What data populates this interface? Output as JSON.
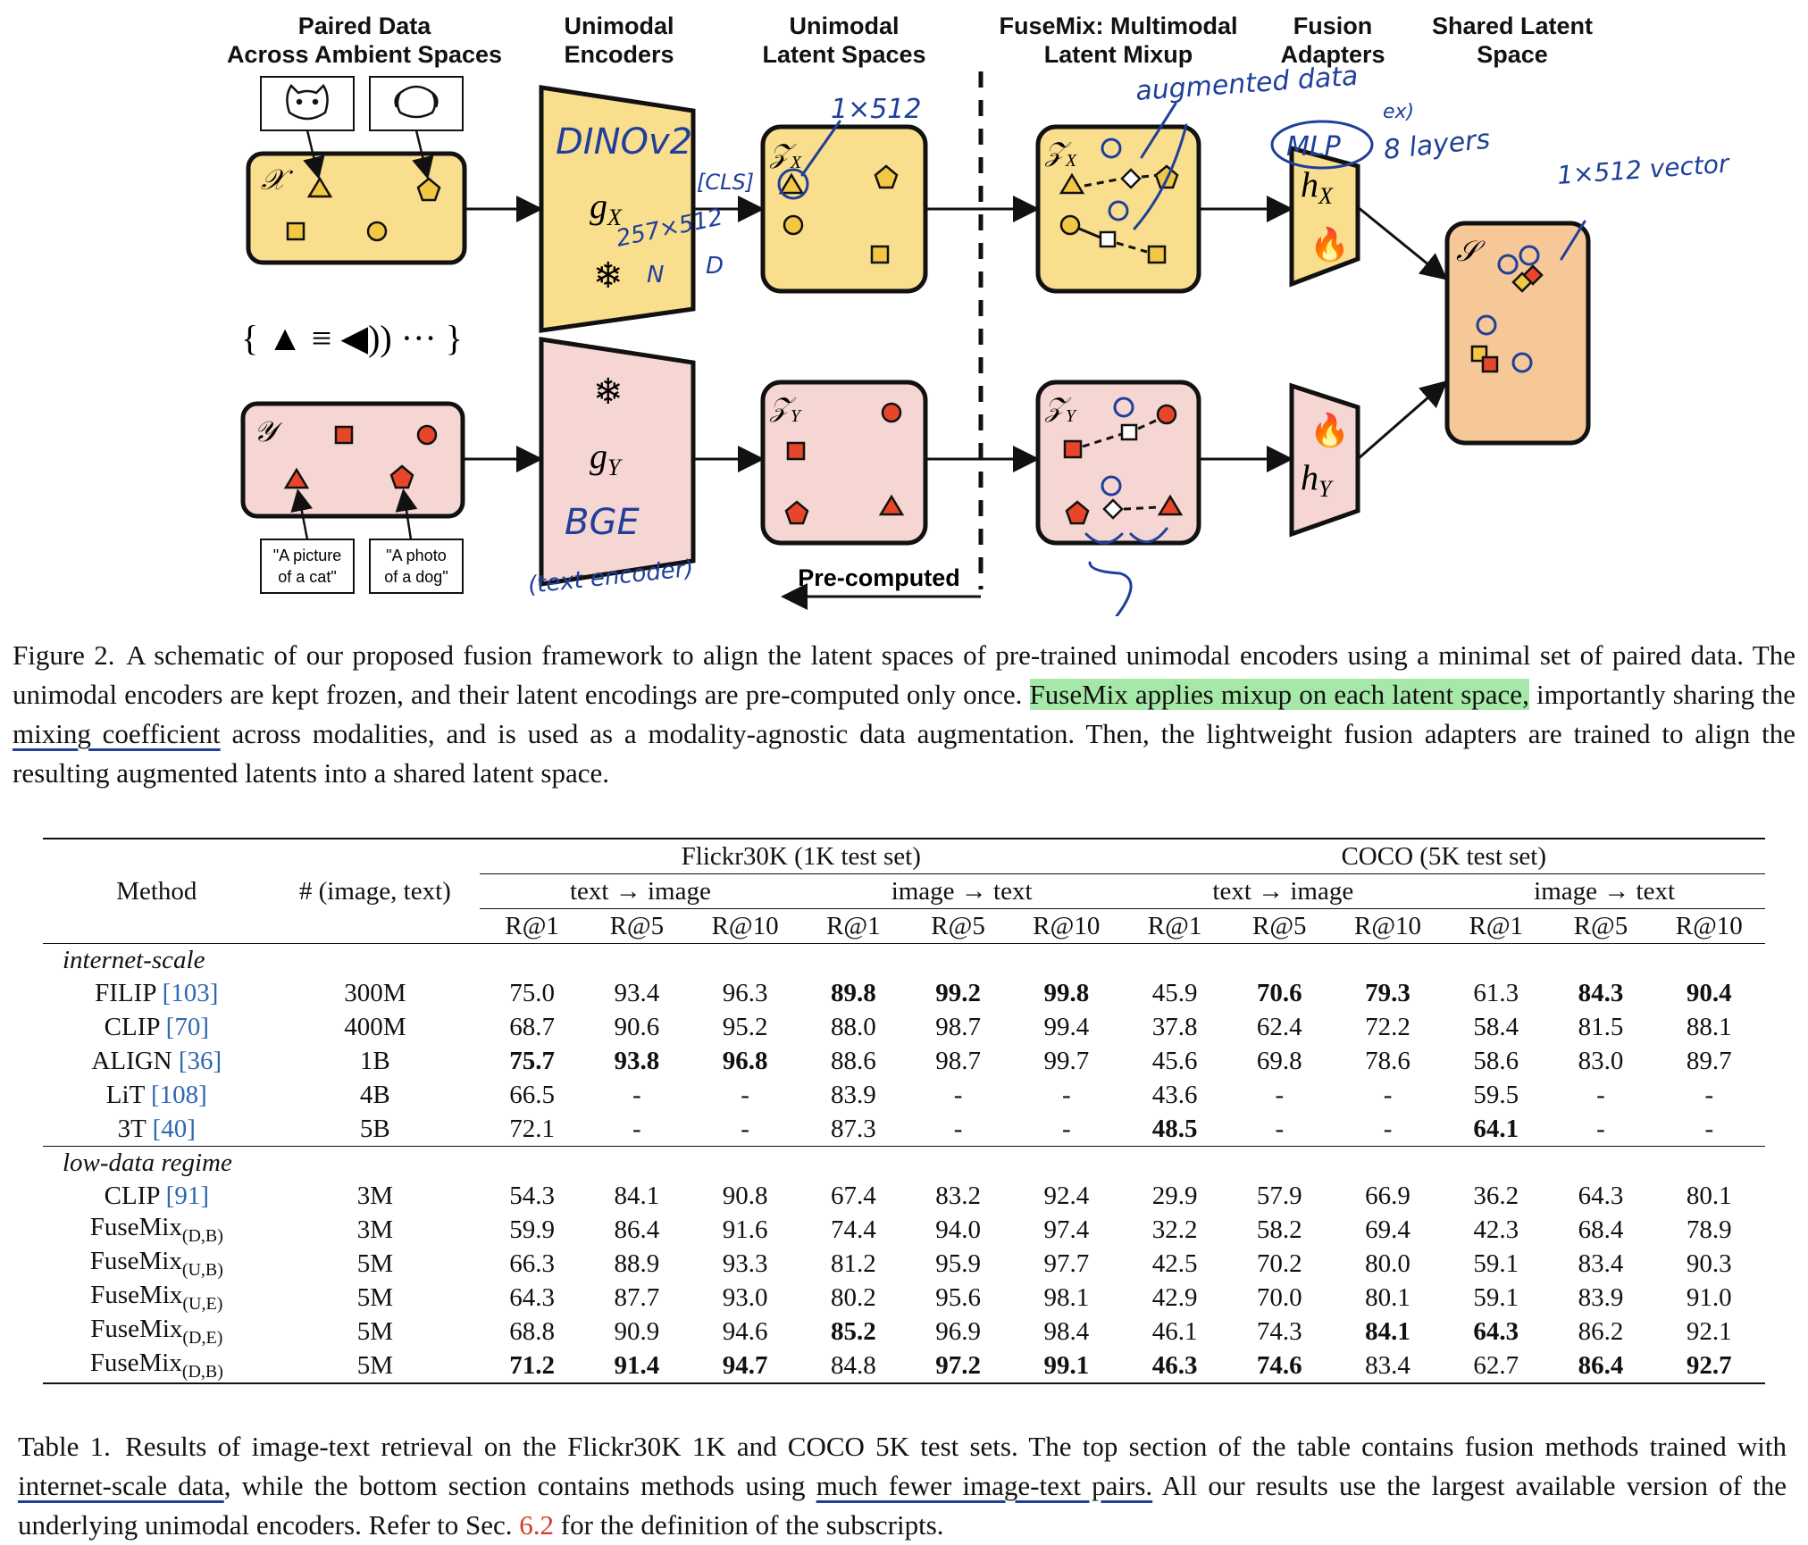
{
  "figure": {
    "headers": {
      "paired": [
        "Paired Data",
        "Across Ambient Spaces"
      ],
      "encoders": [
        "Unimodal",
        "Encoders"
      ],
      "latent": [
        "Unimodal",
        "Latent Spaces"
      ],
      "fusemix": [
        "FuseMix: Multimodal",
        "Latent Mixup"
      ],
      "adapters": [
        "Fusion",
        "Adapters"
      ],
      "shared": [
        "Shared Latent",
        "Space"
      ]
    },
    "space_x": "𝒳",
    "space_y": "𝒴",
    "z_x": "𝒵",
    "z_x_sub": "X",
    "z_y": "𝒵",
    "z_y_sub": "Y",
    "g_x": "g",
    "g_x_sub": "X",
    "g_y": "g",
    "g_y_sub": "Y",
    "h_x": "h",
    "h_x_sub": "X",
    "h_y": "h",
    "h_y_sub": "Y",
    "shared_s": "𝒮",
    "modalities_text": "{ ▲ ≡ ◀)) ··· }",
    "caption_cat": [
      "\"A picture",
      "of a cat\""
    ],
    "caption_dog": [
      "\"A photo",
      "of a dog\""
    ],
    "precomputed": "Pre-computed",
    "colors": {
      "yellow": "#f9de8e",
      "pink": "#f5d6d3",
      "orange": "#f6c898",
      "marker_red": "#e8462a",
      "ink_blue": "#1f3f9a"
    },
    "handwriting": {
      "dinov2": "DINOv2",
      "dim1": "1×512",
      "cls": "[CLS]",
      "dim257": "257×512",
      "n": "N",
      "d": "D",
      "bge": "BGE",
      "text_encoder": "(text encoder)",
      "augmented": "augmented data",
      "mlp": "MLP",
      "ex": "ex)",
      "layers": "8 layers",
      "vec": "1×512 vector"
    }
  },
  "figure_caption": {
    "label": "Figure 2.",
    "part1": "A schematic of our proposed fusion framework to align the latent spaces of pre-trained unimodal encoders using a minimal set of paired data. The unimodal encoders are kept frozen, and their latent encodings are pre-computed only once. ",
    "highlight": "FuseMix applies mixup on each latent space,",
    "part2": " importantly sharing the ",
    "underlined": "mixing coefficient",
    "part3": " across modalities, and is used as a modality-agnostic data augmentation. Then, the lightweight fusion adapters are trained to align the resulting augmented latents into a shared latent space."
  },
  "table": {
    "col_method": "Method",
    "col_pairs": "# (image, text)",
    "group1": "Flickr30K (1K test set)",
    "group2": "COCO (5K test set)",
    "t2i": "text → image",
    "i2t": "image → text",
    "metrics": [
      "R@1",
      "R@5",
      "R@10",
      "R@1",
      "R@5",
      "R@10",
      "R@1",
      "R@5",
      "R@10",
      "R@1",
      "R@5",
      "R@10"
    ],
    "sections": [
      {
        "title": "internet-scale",
        "rows": [
          {
            "method": "FILIP",
            "sub": "",
            "ref": "[103]",
            "pairs": "300M",
            "values": [
              "75.0",
              "93.4",
              "96.3",
              "89.8",
              "99.2",
              "99.8",
              "45.9",
              "70.6",
              "79.3",
              "61.3",
              "84.3",
              "90.4"
            ],
            "bold": [
              false,
              false,
              false,
              true,
              true,
              true,
              false,
              true,
              true,
              false,
              true,
              true
            ]
          },
          {
            "method": "CLIP",
            "sub": "",
            "ref": "[70]",
            "pairs": "400M",
            "values": [
              "68.7",
              "90.6",
              "95.2",
              "88.0",
              "98.7",
              "99.4",
              "37.8",
              "62.4",
              "72.2",
              "58.4",
              "81.5",
              "88.1"
            ],
            "bold": [
              false,
              false,
              false,
              false,
              false,
              false,
              false,
              false,
              false,
              false,
              false,
              false
            ]
          },
          {
            "method": "ALIGN",
            "sub": "",
            "ref": "[36]",
            "pairs": "1B",
            "values": [
              "75.7",
              "93.8",
              "96.8",
              "88.6",
              "98.7",
              "99.7",
              "45.6",
              "69.8",
              "78.6",
              "58.6",
              "83.0",
              "89.7"
            ],
            "bold": [
              true,
              true,
              true,
              false,
              false,
              false,
              false,
              false,
              false,
              false,
              false,
              false
            ]
          },
          {
            "method": "LiT",
            "sub": "",
            "ref": "[108]",
            "pairs": "4B",
            "values": [
              "66.5",
              "-",
              "-",
              "83.9",
              "-",
              "-",
              "43.6",
              "-",
              "-",
              "59.5",
              "-",
              "-"
            ],
            "bold": [
              false,
              false,
              false,
              false,
              false,
              false,
              false,
              false,
              false,
              false,
              false,
              false
            ]
          },
          {
            "method": "3T",
            "sub": "",
            "ref": "[40]",
            "pairs": "5B",
            "values": [
              "72.1",
              "-",
              "-",
              "87.3",
              "-",
              "-",
              "48.5",
              "-",
              "-",
              "64.1",
              "-",
              "-"
            ],
            "bold": [
              false,
              false,
              false,
              false,
              false,
              false,
              true,
              false,
              false,
              true,
              false,
              false
            ]
          }
        ]
      },
      {
        "title": "low-data regime",
        "rows": [
          {
            "method": "CLIP",
            "sub": "",
            "ref": "[91]",
            "pairs": "3M",
            "values": [
              "54.3",
              "84.1",
              "90.8",
              "67.4",
              "83.2",
              "92.4",
              "29.9",
              "57.9",
              "66.9",
              "36.2",
              "64.3",
              "80.1"
            ],
            "bold": [
              false,
              false,
              false,
              false,
              false,
              false,
              false,
              false,
              false,
              false,
              false,
              false
            ]
          },
          {
            "method": "FuseMix",
            "sub": "(D,B)",
            "ref": "",
            "pairs": "3M",
            "values": [
              "59.9",
              "86.4",
              "91.6",
              "74.4",
              "94.0",
              "97.4",
              "32.2",
              "58.2",
              "69.4",
              "42.3",
              "68.4",
              "78.9"
            ],
            "bold": [
              false,
              false,
              false,
              false,
              false,
              false,
              false,
              false,
              false,
              false,
              false,
              false
            ]
          },
          {
            "method": "FuseMix",
            "sub": "(U,B)",
            "ref": "",
            "pairs": "5M",
            "values": [
              "66.3",
              "88.9",
              "93.3",
              "81.2",
              "95.9",
              "97.7",
              "42.5",
              "70.2",
              "80.0",
              "59.1",
              "83.4",
              "90.3"
            ],
            "bold": [
              false,
              false,
              false,
              false,
              false,
              false,
              false,
              false,
              false,
              false,
              false,
              false
            ]
          },
          {
            "method": "FuseMix",
            "sub": "(U,E)",
            "ref": "",
            "pairs": "5M",
            "values": [
              "64.3",
              "87.7",
              "93.0",
              "80.2",
              "95.6",
              "98.1",
              "42.9",
              "70.0",
              "80.1",
              "59.1",
              "83.9",
              "91.0"
            ],
            "bold": [
              false,
              false,
              false,
              false,
              false,
              false,
              false,
              false,
              false,
              false,
              false,
              false
            ]
          },
          {
            "method": "FuseMix",
            "sub": "(D,E)",
            "ref": "",
            "pairs": "5M",
            "values": [
              "68.8",
              "90.9",
              "94.6",
              "85.2",
              "96.9",
              "98.4",
              "46.1",
              "74.3",
              "84.1",
              "64.3",
              "86.2",
              "92.1"
            ],
            "bold": [
              false,
              false,
              false,
              true,
              false,
              false,
              false,
              false,
              true,
              true,
              false,
              false
            ]
          },
          {
            "method": "FuseMix",
            "sub": "(D,B)",
            "ref": "",
            "pairs": "5M",
            "values": [
              "71.2",
              "91.4",
              "94.7",
              "84.8",
              "97.2",
              "99.1",
              "46.3",
              "74.6",
              "83.4",
              "62.7",
              "86.4",
              "92.7"
            ],
            "bold": [
              true,
              true,
              true,
              false,
              true,
              true,
              true,
              true,
              false,
              false,
              true,
              true
            ]
          }
        ]
      }
    ]
  },
  "table_caption": {
    "label": "Table 1.",
    "part1": "Results of image-text retrieval on the Flickr30K 1K and COCO 5K test sets. The top section of the table contains fusion methods trained with ",
    "ul1": "internet-scale data",
    "part2": ", while the bottom section contains methods using ",
    "ul2": "much fewer image-text pairs.",
    "part3": " All our results use the largest available version of the underlying unimodal encoders. Refer to Sec. ",
    "ref": "6.2",
    "part4": " for the definition of the subscripts."
  }
}
